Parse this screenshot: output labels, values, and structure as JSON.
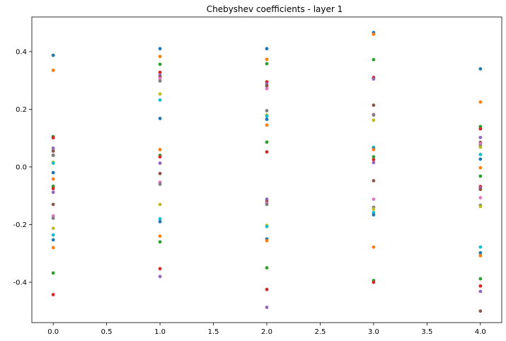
{
  "chart_data": {
    "type": "scatter",
    "title": "Chebyshev coefficients - layer 1",
    "xlabel": "",
    "ylabel": "",
    "xlim": [
      -0.2,
      4.2
    ],
    "ylim": [
      -0.54,
      0.52
    ],
    "xticks": [
      "0.0",
      "0.5",
      "1.0",
      "1.5",
      "2.0",
      "2.5",
      "3.0",
      "3.5",
      "4.0"
    ],
    "yticks": [
      "-0.4",
      "-0.2",
      "0.0",
      "0.2",
      "0.4"
    ],
    "grid": false,
    "palette": [
      "#1f77b4",
      "#ff7f0e",
      "#2ca02c",
      "#d62728",
      "#9467bd",
      "#8c564b",
      "#e377c2",
      "#7f7f7f",
      "#bcbd22",
      "#17becf"
    ],
    "series": [
      {
        "x": 0,
        "y": [
          0.387,
          0.335,
          0.105,
          0.101,
          0.065,
          0.055,
          0.041,
          0.04,
          0.016,
          0.013,
          -0.02,
          -0.042,
          -0.067,
          -0.075,
          -0.088,
          -0.13,
          -0.17,
          -0.178,
          -0.213,
          -0.236,
          -0.253,
          -0.28,
          -0.368,
          -0.443
        ]
      },
      {
        "x": 1,
        "y": [
          0.41,
          0.383,
          0.356,
          0.328,
          0.318,
          0.312,
          0.307,
          0.298,
          0.253,
          0.232,
          0.168,
          0.06,
          0.04,
          0.035,
          0.013,
          -0.023,
          -0.053,
          -0.06,
          -0.13,
          -0.18,
          -0.19,
          -0.24,
          -0.26,
          -0.353,
          -0.38
        ]
      },
      {
        "x": 2,
        "y": [
          0.41,
          0.373,
          0.358,
          0.295,
          0.287,
          0.281,
          0.271,
          0.195,
          0.18,
          0.176,
          0.165,
          0.145,
          0.086,
          0.052,
          -0.112,
          -0.12,
          -0.126,
          -0.13,
          -0.203,
          -0.207,
          -0.25,
          -0.256,
          -0.35,
          -0.425,
          -0.487
        ]
      },
      {
        "x": 3,
        "y": [
          0.466,
          0.46,
          0.372,
          0.31,
          0.305,
          0.214,
          0.182,
          0.18,
          0.162,
          0.068,
          0.063,
          0.06,
          0.035,
          0.025,
          0.015,
          -0.048,
          -0.112,
          -0.14,
          -0.146,
          -0.158,
          -0.166,
          -0.278,
          -0.394,
          -0.4
        ]
      },
      {
        "x": 4,
        "y": [
          0.34,
          0.225,
          0.14,
          0.132,
          0.102,
          0.085,
          0.08,
          0.073,
          0.068,
          0.043,
          0.027,
          -0.003,
          -0.032,
          -0.068,
          -0.073,
          -0.078,
          -0.107,
          -0.133,
          -0.137,
          -0.278,
          -0.298,
          -0.308,
          -0.388,
          -0.413,
          -0.432,
          -0.5
        ]
      }
    ]
  }
}
